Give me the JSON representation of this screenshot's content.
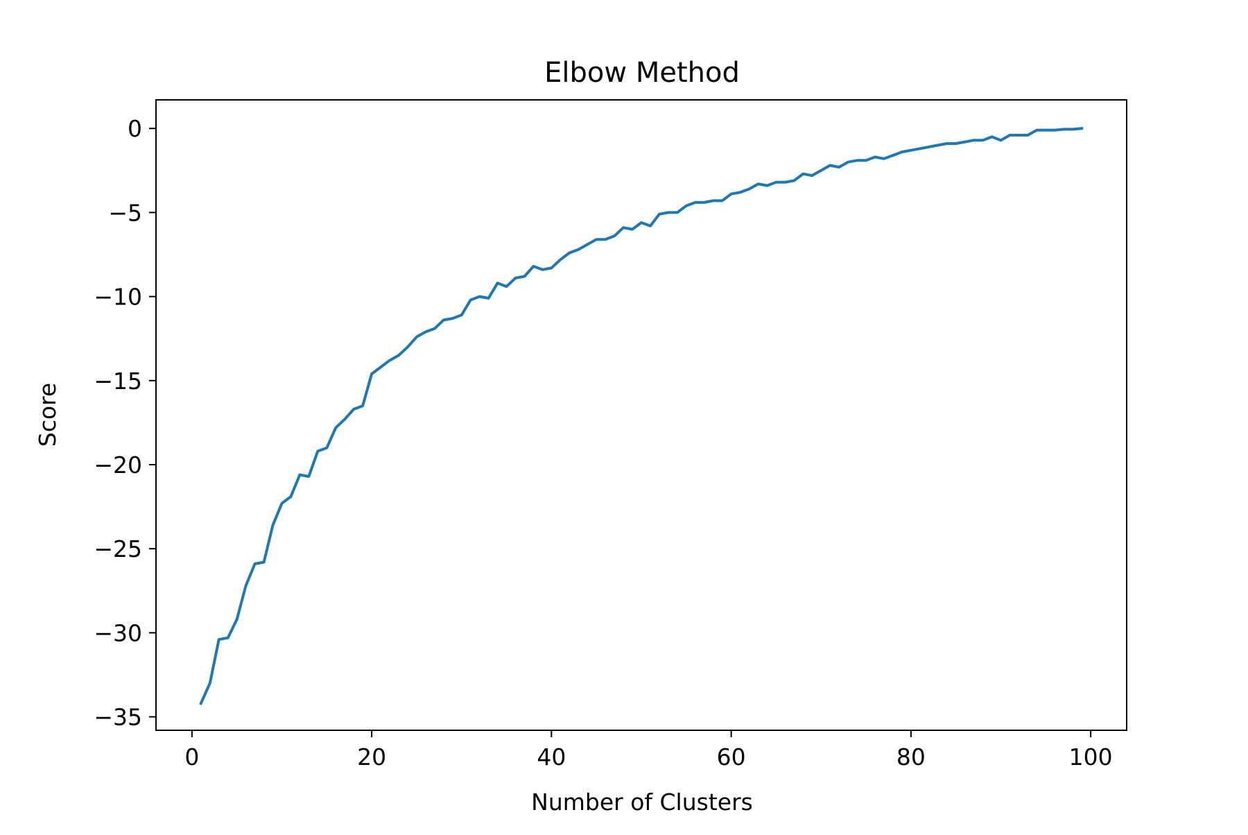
{
  "chart_data": {
    "type": "line",
    "title": "Elbow Method",
    "xlabel": "Number of Clusters",
    "ylabel": "Score",
    "xlim": [
      -4.0,
      104.0
    ],
    "ylim": [
      -35.8,
      1.7
    ],
    "xticks": [
      0,
      20,
      40,
      60,
      80,
      100
    ],
    "xtick_labels": [
      "0",
      "20",
      "40",
      "60",
      "80",
      "100"
    ],
    "yticks": [
      0,
      -5,
      -10,
      -15,
      -20,
      -25,
      -30,
      -35
    ],
    "ytick_labels": [
      "0",
      "−5",
      "−10",
      "−15",
      "−20",
      "−25",
      "−30",
      "−35"
    ],
    "grid": false,
    "legend": "none",
    "line_color": "#1f77b4",
    "series": [
      {
        "x": [
          1,
          2,
          3,
          4,
          5,
          6,
          7,
          8,
          9,
          10,
          11,
          12,
          13,
          14,
          15,
          16,
          17,
          18,
          19,
          20,
          21,
          22,
          23,
          24,
          25,
          26,
          27,
          28,
          29,
          30,
          31,
          32,
          33,
          34,
          35,
          36,
          37,
          38,
          39,
          40,
          41,
          42,
          43,
          44,
          45,
          46,
          47,
          48,
          49,
          50,
          51,
          52,
          53,
          54,
          55,
          56,
          57,
          58,
          59,
          60,
          61,
          62,
          63,
          64,
          65,
          66,
          67,
          68,
          69,
          70,
          71,
          72,
          73,
          74,
          75,
          76,
          77,
          78,
          79,
          80,
          81,
          82,
          83,
          84,
          85,
          86,
          87,
          88,
          89,
          90,
          91,
          92,
          93,
          94,
          95,
          96,
          97,
          98,
          99
        ],
        "values": [
          -34.2,
          -33.0,
          -30.4,
          -30.3,
          -29.2,
          -27.2,
          -25.9,
          -25.8,
          -23.6,
          -22.3,
          -21.9,
          -20.6,
          -20.7,
          -19.2,
          -19.0,
          -17.8,
          -17.3,
          -16.7,
          -16.5,
          -14.6,
          -14.2,
          -13.8,
          -13.5,
          -13.0,
          -12.4,
          -12.1,
          -11.9,
          -11.4,
          -11.3,
          -11.1,
          -10.2,
          -10.0,
          -10.1,
          -9.2,
          -9.4,
          -8.9,
          -8.8,
          -8.2,
          -8.4,
          -8.3,
          -7.8,
          -7.4,
          -7.2,
          -6.9,
          -6.6,
          -6.6,
          -6.4,
          -5.9,
          -6.0,
          -5.6,
          -5.8,
          -5.1,
          -5.0,
          -5.0,
          -4.6,
          -4.4,
          -4.4,
          -4.3,
          -4.3,
          -3.9,
          -3.8,
          -3.6,
          -3.3,
          -3.4,
          -3.2,
          -3.2,
          -3.1,
          -2.7,
          -2.8,
          -2.5,
          -2.2,
          -2.3,
          -2.0,
          -1.9,
          -1.9,
          -1.7,
          -1.8,
          -1.6,
          -1.4,
          -1.3,
          -1.2,
          -1.1,
          -1.0,
          -0.9,
          -0.9,
          -0.8,
          -0.7,
          -0.7,
          -0.5,
          -0.7,
          -0.4,
          -0.4,
          -0.4,
          -0.1,
          -0.1,
          -0.1,
          -0.05,
          -0.05,
          0.0
        ]
      }
    ]
  }
}
